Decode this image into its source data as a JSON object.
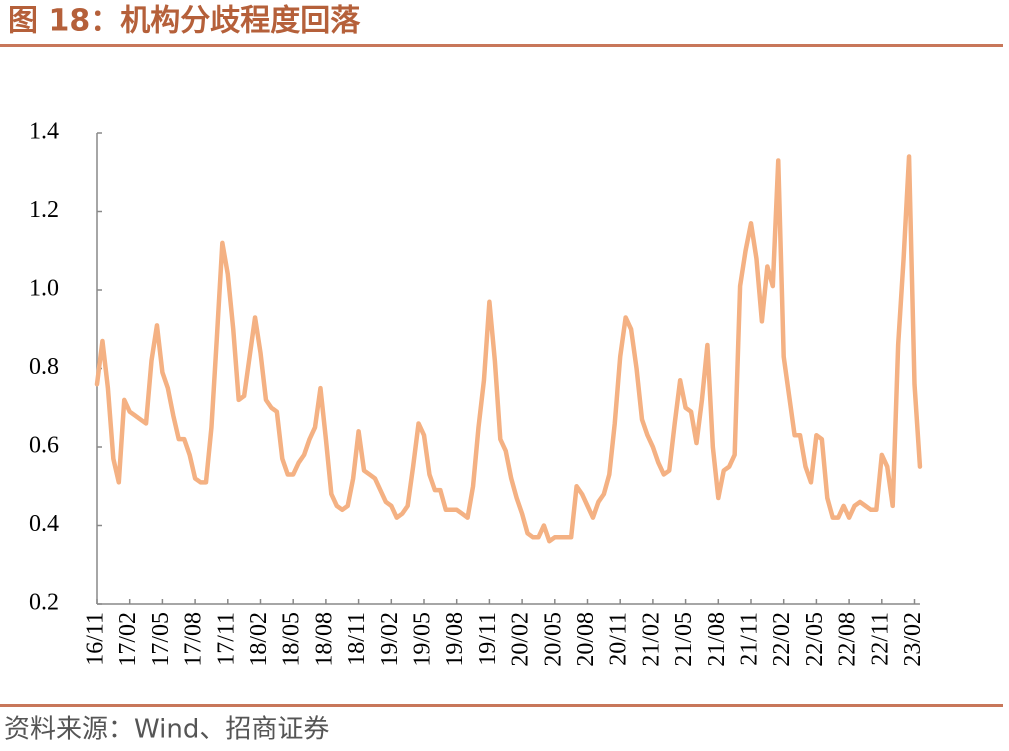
{
  "chart_data": {
    "type": "line",
    "title": "图 18：机构分歧程度回落",
    "source": "资料来源：Wind、招商证券",
    "categories": [
      "16/11",
      null,
      null,
      null,
      null,
      null,
      "17/02",
      null,
      null,
      null,
      null,
      null,
      "17/05",
      null,
      null,
      null,
      null,
      null,
      "17/08",
      null,
      null,
      null,
      null,
      null,
      "17/11",
      null,
      null,
      null,
      null,
      null,
      "18/02",
      null,
      null,
      null,
      null,
      null,
      "18/05",
      null,
      null,
      null,
      null,
      null,
      "18/08",
      null,
      null,
      null,
      null,
      null,
      "18/11",
      null,
      null,
      null,
      null,
      null,
      "19/02",
      null,
      null,
      null,
      null,
      null,
      "19/05",
      null,
      null,
      null,
      null,
      null,
      "19/08",
      null,
      null,
      null,
      null,
      null,
      "19/11",
      null,
      null,
      null,
      null,
      null,
      "20/02",
      null,
      null,
      null,
      null,
      null,
      "20/05",
      null,
      null,
      null,
      null,
      null,
      "20/08",
      null,
      null,
      null,
      null,
      null,
      "20/11",
      null,
      null,
      null,
      null,
      null,
      "21/02",
      null,
      null,
      null,
      null,
      null,
      "21/05",
      null,
      null,
      null,
      null,
      null,
      "21/08",
      null,
      null,
      null,
      null,
      null,
      "21/11",
      null,
      null,
      null,
      null,
      null,
      "22/02",
      null,
      null,
      null,
      null,
      null,
      "22/05",
      null,
      null,
      null,
      null,
      null,
      "22/08",
      null,
      null,
      null,
      null,
      null,
      "22/11",
      null,
      null,
      null,
      null,
      null,
      "23/02",
      null
    ],
    "series": [
      {
        "color": "#f4b183",
        "values": [
          0.76,
          0.87,
          0.75,
          0.57,
          0.51,
          0.72,
          0.69,
          0.68,
          0.67,
          0.66,
          0.82,
          0.91,
          0.79,
          0.75,
          0.68,
          0.62,
          0.62,
          0.58,
          0.52,
          0.51,
          0.51,
          0.65,
          0.88,
          1.12,
          1.04,
          0.9,
          0.72,
          0.73,
          0.83,
          0.93,
          0.84,
          0.72,
          0.7,
          0.69,
          0.57,
          0.53,
          0.53,
          0.56,
          0.58,
          0.62,
          0.65,
          0.75,
          0.62,
          0.48,
          0.45,
          0.44,
          0.45,
          0.52,
          0.64,
          0.54,
          0.53,
          0.52,
          0.49,
          0.46,
          0.45,
          0.42,
          0.43,
          0.45,
          0.55,
          0.66,
          0.63,
          0.53,
          0.49,
          0.49,
          0.44,
          0.44,
          0.44,
          0.43,
          0.42,
          0.5,
          0.65,
          0.77,
          0.97,
          0.82,
          0.62,
          0.59,
          0.52,
          0.47,
          0.43,
          0.38,
          0.37,
          0.37,
          0.4,
          0.36,
          0.37,
          0.37,
          0.37,
          0.37,
          0.5,
          0.48,
          0.45,
          0.42,
          0.46,
          0.48,
          0.53,
          0.66,
          0.83,
          0.93,
          0.9,
          0.8,
          0.67,
          0.63,
          0.6,
          0.56,
          0.53,
          0.54,
          0.66,
          0.77,
          0.7,
          0.69,
          0.61,
          0.72,
          0.86,
          0.6,
          0.47,
          0.54,
          0.55,
          0.58,
          1.01,
          1.1,
          1.17,
          1.08,
          0.92,
          1.06,
          1.01,
          1.33,
          0.83,
          0.73,
          0.63,
          0.63,
          0.55,
          0.51,
          0.63,
          0.62,
          0.47,
          0.42,
          0.42,
          0.45,
          0.42,
          0.45,
          0.46,
          0.45,
          0.44,
          0.44,
          0.58,
          0.55,
          0.45,
          0.86,
          1.08,
          1.34,
          0.76,
          0.55
        ]
      }
    ],
    "ylim": [
      0.2,
      1.4
    ],
    "yticks": [
      0.2,
      0.4,
      0.6,
      0.8,
      {
        "value": 1,
        "label": "1.0"
      },
      1.2,
      1.4
    ]
  }
}
